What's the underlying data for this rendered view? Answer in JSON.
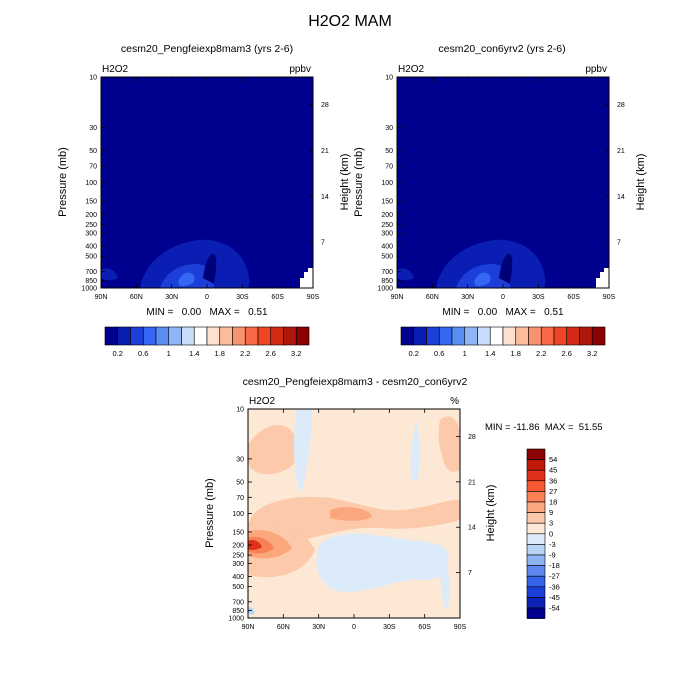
{
  "title": "H2O2 MAM",
  "panels": [
    {
      "title": "cesm20_Pengfeiexp8mam3 (yrs 2-6)",
      "var_label": "H2O2",
      "unit_label": "ppbv",
      "ylabel": "Pressure (mb)",
      "y2label": "Height (km)",
      "stats": "MIN =   0.00   MAX =   0.51"
    },
    {
      "title": "cesm20_con6yrv2 (yrs 2-6)",
      "var_label": "H2O2",
      "unit_label": "ppbv",
      "ylabel": "Pressure (mb)",
      "y2label": "Height (km)",
      "stats": "MIN =   0.00   MAX =   0.51"
    },
    {
      "title": "cesm20_Pengfeiexp8mam3 - cesm20_con6yrv2",
      "var_label": "H2O2",
      "unit_label": "%",
      "ylabel": "Pressure (mb)",
      "y2label": "Height (km)",
      "stats": "MIN = -11.86  MAX =  51.55"
    }
  ],
  "chart_data": [
    {
      "type": "heatmap",
      "title": "cesm20_Pengfeiexp8mam3 (yrs 2-6)",
      "x_ticks": [
        "90N",
        "60N",
        "30N",
        "0",
        "30S",
        "60S",
        "90S"
      ],
      "y_ticks": [
        10,
        30,
        50,
        70,
        100,
        150,
        200,
        250,
        300,
        400,
        500,
        700,
        850,
        1000
      ],
      "y2_ticks": [
        28,
        21,
        14,
        7
      ],
      "ylabel": "Pressure (mb)",
      "y2label": "Height (km)",
      "units": "ppbv",
      "min": 0.0,
      "max": 0.51,
      "colorbar_labels": [
        "0.2",
        "0.6",
        "1",
        "1.4",
        "1.8",
        "2.2",
        "2.6",
        "3.2"
      ],
      "colorbar_colors": [
        "#00008f",
        "#0a1eb4",
        "#1b3fd8",
        "#3468f2",
        "#5a8ef5",
        "#90b6f8",
        "#c8ddfb",
        "#ffffff",
        "#fde0cf",
        "#fcbc9c",
        "#f99470",
        "#f76a45",
        "#ee4524",
        "#d42b14",
        "#b0170b",
        "#8b0000"
      ]
    },
    {
      "type": "heatmap",
      "title": "cesm20_con6yrv2 (yrs 2-6)",
      "x_ticks": [
        "90N",
        "60N",
        "30N",
        "0",
        "30S",
        "60S",
        "90S"
      ],
      "y_ticks": [
        10,
        30,
        50,
        70,
        100,
        150,
        200,
        250,
        300,
        400,
        500,
        700,
        850,
        1000
      ],
      "y2_ticks": [
        28,
        21,
        14,
        7
      ],
      "ylabel": "Pressure (mb)",
      "y2label": "Height (km)",
      "units": "ppbv",
      "min": 0.0,
      "max": 0.51,
      "colorbar_labels": [
        "0.2",
        "0.6",
        "1",
        "1.4",
        "1.8",
        "2.2",
        "2.6",
        "3.2"
      ],
      "colorbar_colors": [
        "#00008f",
        "#0a1eb4",
        "#1b3fd8",
        "#3468f2",
        "#5a8ef5",
        "#90b6f8",
        "#c8ddfb",
        "#ffffff",
        "#fde0cf",
        "#fcbc9c",
        "#f99470",
        "#f76a45",
        "#ee4524",
        "#d42b14",
        "#b0170b",
        "#8b0000"
      ]
    },
    {
      "type": "heatmap",
      "title": "cesm20_Pengfeiexp8mam3 - cesm20_con6yrv2",
      "x_ticks": [
        "90N",
        "60N",
        "30N",
        "0",
        "30S",
        "60S",
        "90S"
      ],
      "y_ticks": [
        10,
        30,
        50,
        70,
        100,
        150,
        200,
        250,
        300,
        400,
        500,
        700,
        850,
        1000
      ],
      "y2_ticks": [
        28,
        21,
        14,
        7
      ],
      "ylabel": "Pressure (mb)",
      "y2label": "Height (km)",
      "units": "%",
      "min": -11.86,
      "max": 51.55,
      "colorbar_labels": [
        "54",
        "45",
        "36",
        "27",
        "18",
        "9",
        "3",
        "0",
        "-3",
        "-9",
        "-18",
        "-27",
        "-36",
        "-45",
        "-54"
      ],
      "colorbar_colors": [
        "#8b0000",
        "#c0180b",
        "#e0301a",
        "#f65a32",
        "#f98155",
        "#fba77e",
        "#fcc9aa",
        "#fde8d5",
        "#dcebfa",
        "#b9d4f6",
        "#8fb2f2",
        "#5f89ee",
        "#3462e8",
        "#1a3fd6",
        "#0c22b4",
        "#00008f"
      ]
    }
  ]
}
